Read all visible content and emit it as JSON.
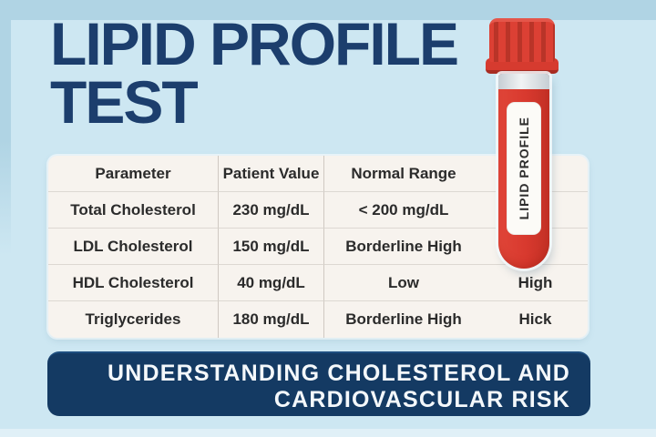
{
  "title": {
    "line1": "LIPID PROFILE",
    "line2": "TEST"
  },
  "table": {
    "columns": [
      "Parameter",
      "Patient Value",
      "Normal Range",
      ""
    ],
    "rows": [
      [
        "Total Cholesterol",
        "230 mg/dL",
        "< 200 mg/dL",
        ""
      ],
      [
        "LDL Cholesterol",
        "150 mg/dL",
        "Borderline High",
        ""
      ],
      [
        "HDL Cholesterol",
        "40 mg/dL",
        "Low",
        "High"
      ],
      [
        "Triglycerides",
        "180 mg/dL",
        "Borderline High",
        "Hick"
      ]
    ]
  },
  "tube": {
    "label": "LIPID PROFILE"
  },
  "banner": {
    "line1": "UNDERSTANDING CHOLESTEROL AND",
    "line2": "CARDIOVASCULAR RISK"
  },
  "colors": {
    "background": "#cde7f2",
    "top_band": "#b0d4e4",
    "title_navy": "#1c3e6d",
    "banner_navy": "#143a63",
    "table_background": "#f7f3ee",
    "table_text": "#2b2b2b",
    "tube_red": "#d8392e",
    "banner_text": "#f4f8fb"
  }
}
